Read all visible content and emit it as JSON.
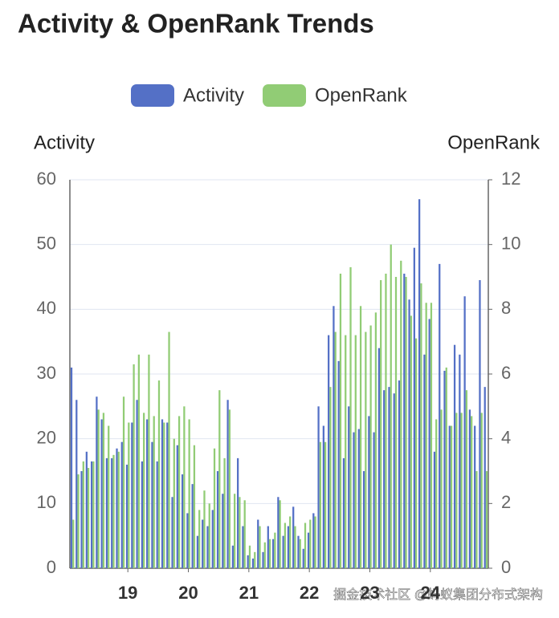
{
  "chart_data": {
    "type": "bar",
    "title": "Activity & OpenRank Trends",
    "y_label": "Activity",
    "y2_label": "OpenRank",
    "categories": [
      null,
      null,
      null,
      null,
      null,
      null,
      null,
      null,
      null,
      null,
      null,
      "19",
      null,
      null,
      null,
      null,
      null,
      null,
      null,
      null,
      null,
      null,
      null,
      "20",
      null,
      null,
      null,
      null,
      null,
      null,
      null,
      null,
      null,
      null,
      null,
      "21",
      null,
      null,
      null,
      null,
      null,
      null,
      null,
      null,
      null,
      null,
      null,
      "22",
      null,
      null,
      null,
      null,
      null,
      null,
      null,
      null,
      null,
      null,
      null,
      "23",
      null,
      null,
      null,
      null,
      null,
      null,
      null,
      null,
      null,
      null,
      null,
      "24",
      null,
      null,
      null,
      null,
      null,
      null,
      null,
      null,
      null,
      null,
      null
    ],
    "series": [
      {
        "name": "Activity",
        "color": "#5470c6",
        "axis": "y",
        "values": [
          31,
          26,
          15,
          18,
          16.5,
          26.5,
          23,
          17,
          17,
          18.5,
          19.5,
          16,
          22.5,
          26,
          16.5,
          23,
          19.5,
          16.5,
          23,
          22.5,
          11,
          19,
          14.5,
          8.5,
          13,
          5,
          7.5,
          6.5,
          9,
          15,
          11.5,
          26,
          3.5,
          17,
          6.5,
          2,
          1.5,
          7.5,
          2.5,
          6.5,
          4.5,
          11,
          5,
          6.5,
          9.5,
          5,
          3,
          5.5,
          8.5,
          25,
          22,
          36,
          40.5,
          32,
          17,
          25,
          21,
          21.5,
          15,
          23.5,
          21,
          34,
          27.5,
          28,
          27,
          29,
          45.5,
          41.5,
          49.5,
          57,
          33,
          38.5,
          18,
          47,
          30.5,
          22,
          34.5,
          33,
          42,
          24.5,
          22,
          44.5,
          28
        ]
      },
      {
        "name": "OpenRank",
        "color": "#91cc75",
        "axis": "y2",
        "values": [
          1.5,
          2.9,
          3.3,
          3.1,
          3.3,
          4.9,
          4.8,
          4.4,
          3.5,
          3.6,
          5.3,
          4.5,
          6.3,
          6.6,
          4.8,
          6.6,
          4.7,
          5.8,
          4.5,
          7.3,
          4.0,
          4.7,
          5.0,
          4.6,
          3.8,
          1.8,
          2.4,
          2.0,
          3.7,
          5.5,
          3.4,
          4.9,
          2.3,
          2.2,
          2.1,
          0.7,
          0.5,
          1.3,
          0.8,
          0.9,
          1.1,
          2.1,
          1.4,
          1.6,
          1.3,
          0.9,
          1.4,
          1.5,
          1.6,
          3.9,
          3.9,
          5.6,
          7.3,
          9.1,
          7.2,
          9.3,
          7.2,
          8.1,
          7.3,
          7.5,
          7.9,
          8.9,
          9.1,
          10,
          9.0,
          9.5,
          9.0,
          7.8,
          7.1,
          8.8,
          8.2,
          8.2,
          4.6,
          4.9,
          6.2,
          4.4,
          4.8,
          4.8,
          5.5,
          4.7,
          3.0,
          4.8,
          3.0
        ]
      }
    ],
    "ylim": [
      0,
      60
    ],
    "yticks": [
      0,
      10,
      20,
      30,
      40,
      50,
      60
    ],
    "y2lim": [
      0,
      12
    ],
    "y2ticks": [
      0,
      2,
      4,
      6,
      8,
      10,
      12
    ],
    "grid": true,
    "legend": "top"
  },
  "watermark": "掘金技术社区 @蚂蚁集团分布式架构"
}
